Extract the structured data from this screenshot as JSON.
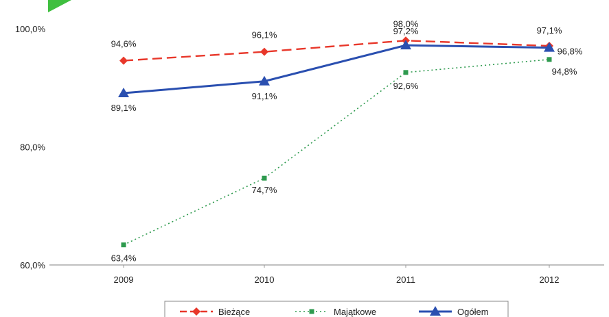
{
  "chart_data": {
    "type": "line",
    "title": "",
    "xlabel": "",
    "ylabel": "",
    "categories": [
      "2009",
      "2010",
      "2011",
      "2012"
    ],
    "y_ticks": [
      "60,0%",
      "80,0%",
      "100,0%"
    ],
    "ylim": [
      60,
      100
    ],
    "grid": false,
    "legend_position": "bottom",
    "series": [
      {
        "name": "Bieżące",
        "values": [
          94.6,
          96.1,
          98.0,
          97.1
        ],
        "labels": [
          "94,6%",
          "96,1%",
          "98,0%",
          "97,1%"
        ],
        "color": "#e8372a",
        "line_style": "dashed",
        "marker": "diamond"
      },
      {
        "name": "Majątkowe",
        "values": [
          63.4,
          74.7,
          92.6,
          94.8
        ],
        "labels": [
          "63,4%",
          "74,7%",
          "92,6%",
          "94,8%"
        ],
        "color": "#2e9a4e",
        "line_style": "dotted",
        "marker": "square"
      },
      {
        "name": "Ogółem",
        "values": [
          89.1,
          91.1,
          97.2,
          96.8
        ],
        "labels": [
          "89,1%",
          "91,1%",
          "97,2%",
          "96,8%"
        ],
        "color": "#2a4fb0",
        "line_style": "solid",
        "marker": "triangle"
      }
    ]
  },
  "colors": {
    "axis": "#9a9a9a",
    "corner_arrow": "#3fbf3f"
  }
}
